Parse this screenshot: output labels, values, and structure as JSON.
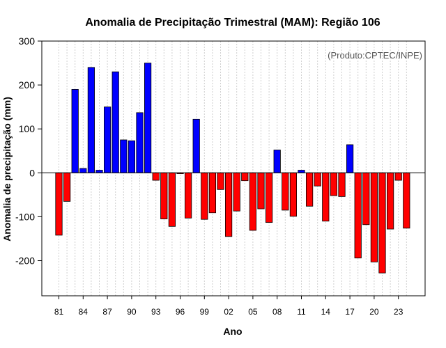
{
  "chart_data": {
    "type": "bar",
    "title": "Anomalia de Precipitação Trimestral (MAM): Região 106",
    "xlabel": "Ano",
    "ylabel": "Anomalia de precipitação (mm)",
    "credit": "(Produto:CPTEC/INPE)",
    "ylim": [
      -280,
      300
    ],
    "yticks": [
      -200,
      -100,
      0,
      100,
      200,
      300
    ],
    "ytick_labels": [
      "-200",
      "-100",
      "0",
      "100",
      "200",
      "300"
    ],
    "xtick_labels": [
      "81",
      "84",
      "87",
      "90",
      "93",
      "96",
      "99",
      "02",
      "05",
      "08",
      "11",
      "14",
      "17",
      "20",
      "23"
    ],
    "xtick_years": [
      1981,
      1984,
      1987,
      1990,
      1993,
      1996,
      1999,
      2002,
      2005,
      2008,
      2011,
      2014,
      2017,
      2020,
      2023
    ],
    "positive_color": "#0000ff",
    "negative_color": "#ff0000",
    "years": [
      1981,
      1982,
      1983,
      1984,
      1985,
      1986,
      1987,
      1988,
      1989,
      1990,
      1991,
      1992,
      1993,
      1994,
      1995,
      1996,
      1997,
      1998,
      1999,
      2000,
      2001,
      2002,
      2003,
      2004,
      2005,
      2006,
      2007,
      2008,
      2009,
      2010,
      2011,
      2012,
      2013,
      2014,
      2015,
      2016,
      2017,
      2018,
      2019,
      2020,
      2021,
      2022,
      2023,
      2024
    ],
    "values": [
      -142,
      -65,
      190,
      10,
      240,
      6,
      150,
      230,
      75,
      73,
      137,
      250,
      -17,
      -105,
      -122,
      -2,
      -103,
      122,
      -106,
      -91,
      -38,
      -145,
      -87,
      -18,
      -131,
      -82,
      -113,
      52,
      -85,
      -99,
      6,
      -76,
      -30,
      -110,
      -52,
      -54,
      64,
      -194,
      -118,
      -203,
      -228,
      -128,
      -17,
      -126
    ]
  }
}
